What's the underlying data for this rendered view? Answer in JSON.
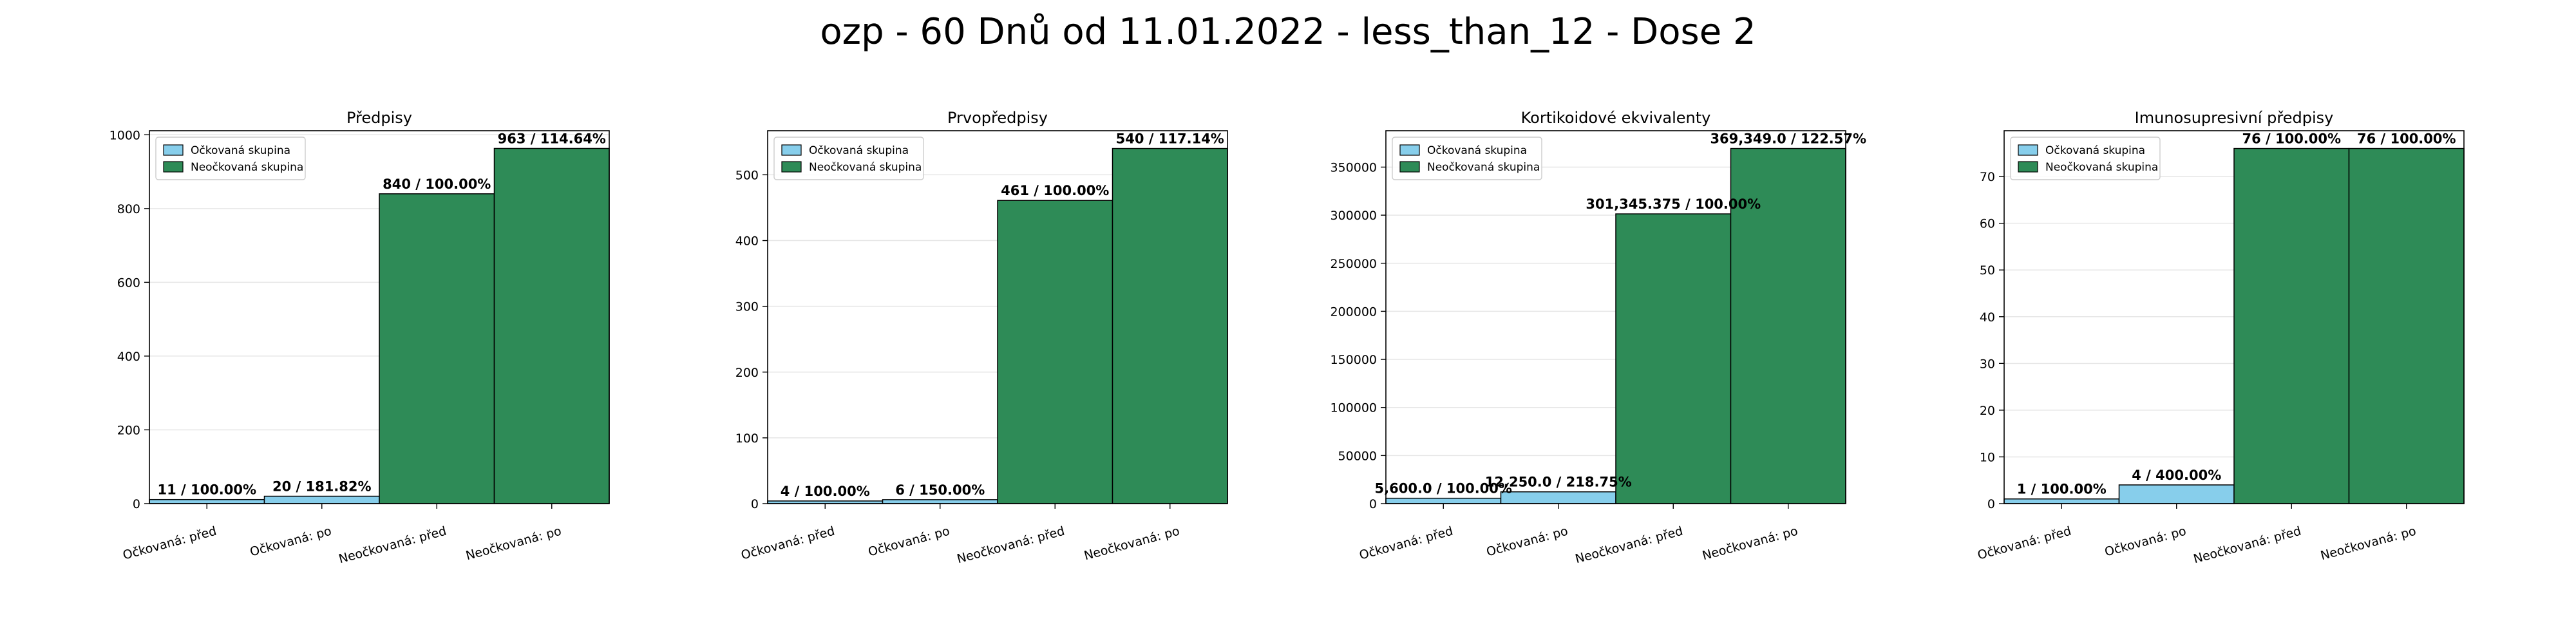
{
  "figure": {
    "title": "ozp - 60 Dnů od 11.01.2022 - less_than_12 - Dose 2"
  },
  "colors": {
    "vaccinated": "#87ceeb",
    "unvaccinated": "#2e8b57",
    "edge": "#000000",
    "grid": "#e6e6e6"
  },
  "legend_labels": [
    "Očkovaná skupina",
    "Neočkovaná skupina"
  ],
  "chart_data": [
    {
      "type": "bar",
      "title": "Předpisy",
      "categories": [
        "Očkovaná: před",
        "Očkovaná: po",
        "Neočkovaná: před",
        "Neočkovaná: po"
      ],
      "values": [
        11,
        20,
        840,
        963
      ],
      "bar_labels": [
        "11 / 100.00%",
        "20 / 181.82%",
        "840 / 100.00%",
        "963 / 114.64%"
      ],
      "groups": [
        "vaccinated",
        "vaccinated",
        "unvaccinated",
        "unvaccinated"
      ],
      "ylim": [
        0,
        1011
      ],
      "yticks": [
        0,
        200,
        400,
        600,
        800,
        1000
      ],
      "ytick_labels": [
        "0",
        "200",
        "400",
        "600",
        "800",
        "1000"
      ],
      "grid": true,
      "legend": "upper-left"
    },
    {
      "type": "bar",
      "title": "Prvopředpisy",
      "categories": [
        "Očkovaná: před",
        "Očkovaná: po",
        "Neočkovaná: před",
        "Neočkovaná: po"
      ],
      "values": [
        4,
        6,
        461,
        540
      ],
      "bar_labels": [
        "4 / 100.00%",
        "6 / 150.00%",
        "461 / 100.00%",
        "540 / 117.14%"
      ],
      "groups": [
        "vaccinated",
        "vaccinated",
        "unvaccinated",
        "unvaccinated"
      ],
      "ylim": [
        0,
        567
      ],
      "yticks": [
        0,
        100,
        200,
        300,
        400,
        500
      ],
      "ytick_labels": [
        "0",
        "100",
        "200",
        "300",
        "400",
        "500"
      ],
      "grid": true,
      "legend": "upper-left"
    },
    {
      "type": "bar",
      "title": "Kortikoidové ekvivalenty",
      "categories": [
        "Očkovaná: před",
        "Očkovaná: po",
        "Neočkovaná: před",
        "Neočkovaná: po"
      ],
      "values": [
        5600.0,
        12250.0,
        301345.375,
        369349.0
      ],
      "bar_labels": [
        "5,600.0 / 100.00%",
        "12,250.0 / 218.75%",
        "301,345.375 / 100.00%",
        "369,349.0 / 122.57%"
      ],
      "groups": [
        "vaccinated",
        "vaccinated",
        "unvaccinated",
        "unvaccinated"
      ],
      "ylim": [
        0,
        387816
      ],
      "yticks": [
        0,
        50000,
        100000,
        150000,
        200000,
        250000,
        300000,
        350000
      ],
      "ytick_labels": [
        "0",
        "50000",
        "100000",
        "150000",
        "200000",
        "250000",
        "300000",
        "350000"
      ],
      "grid": true,
      "legend": "upper-left"
    },
    {
      "type": "bar",
      "title": "Imunosupresivní předpisy",
      "categories": [
        "Očkovaná: před",
        "Očkovaná: po",
        "Neočkovaná: před",
        "Neočkovaná: po"
      ],
      "values": [
        1,
        4,
        76,
        76
      ],
      "bar_labels": [
        "1 / 100.00%",
        "4 / 400.00%",
        "76 / 100.00%",
        "76 / 100.00%"
      ],
      "groups": [
        "vaccinated",
        "vaccinated",
        "unvaccinated",
        "unvaccinated"
      ],
      "ylim": [
        0,
        79.8
      ],
      "yticks": [
        0,
        10,
        20,
        30,
        40,
        50,
        60,
        70
      ],
      "ytick_labels": [
        "0",
        "10",
        "20",
        "30",
        "40",
        "50",
        "60",
        "70"
      ],
      "grid": true,
      "legend": "upper-left"
    }
  ]
}
